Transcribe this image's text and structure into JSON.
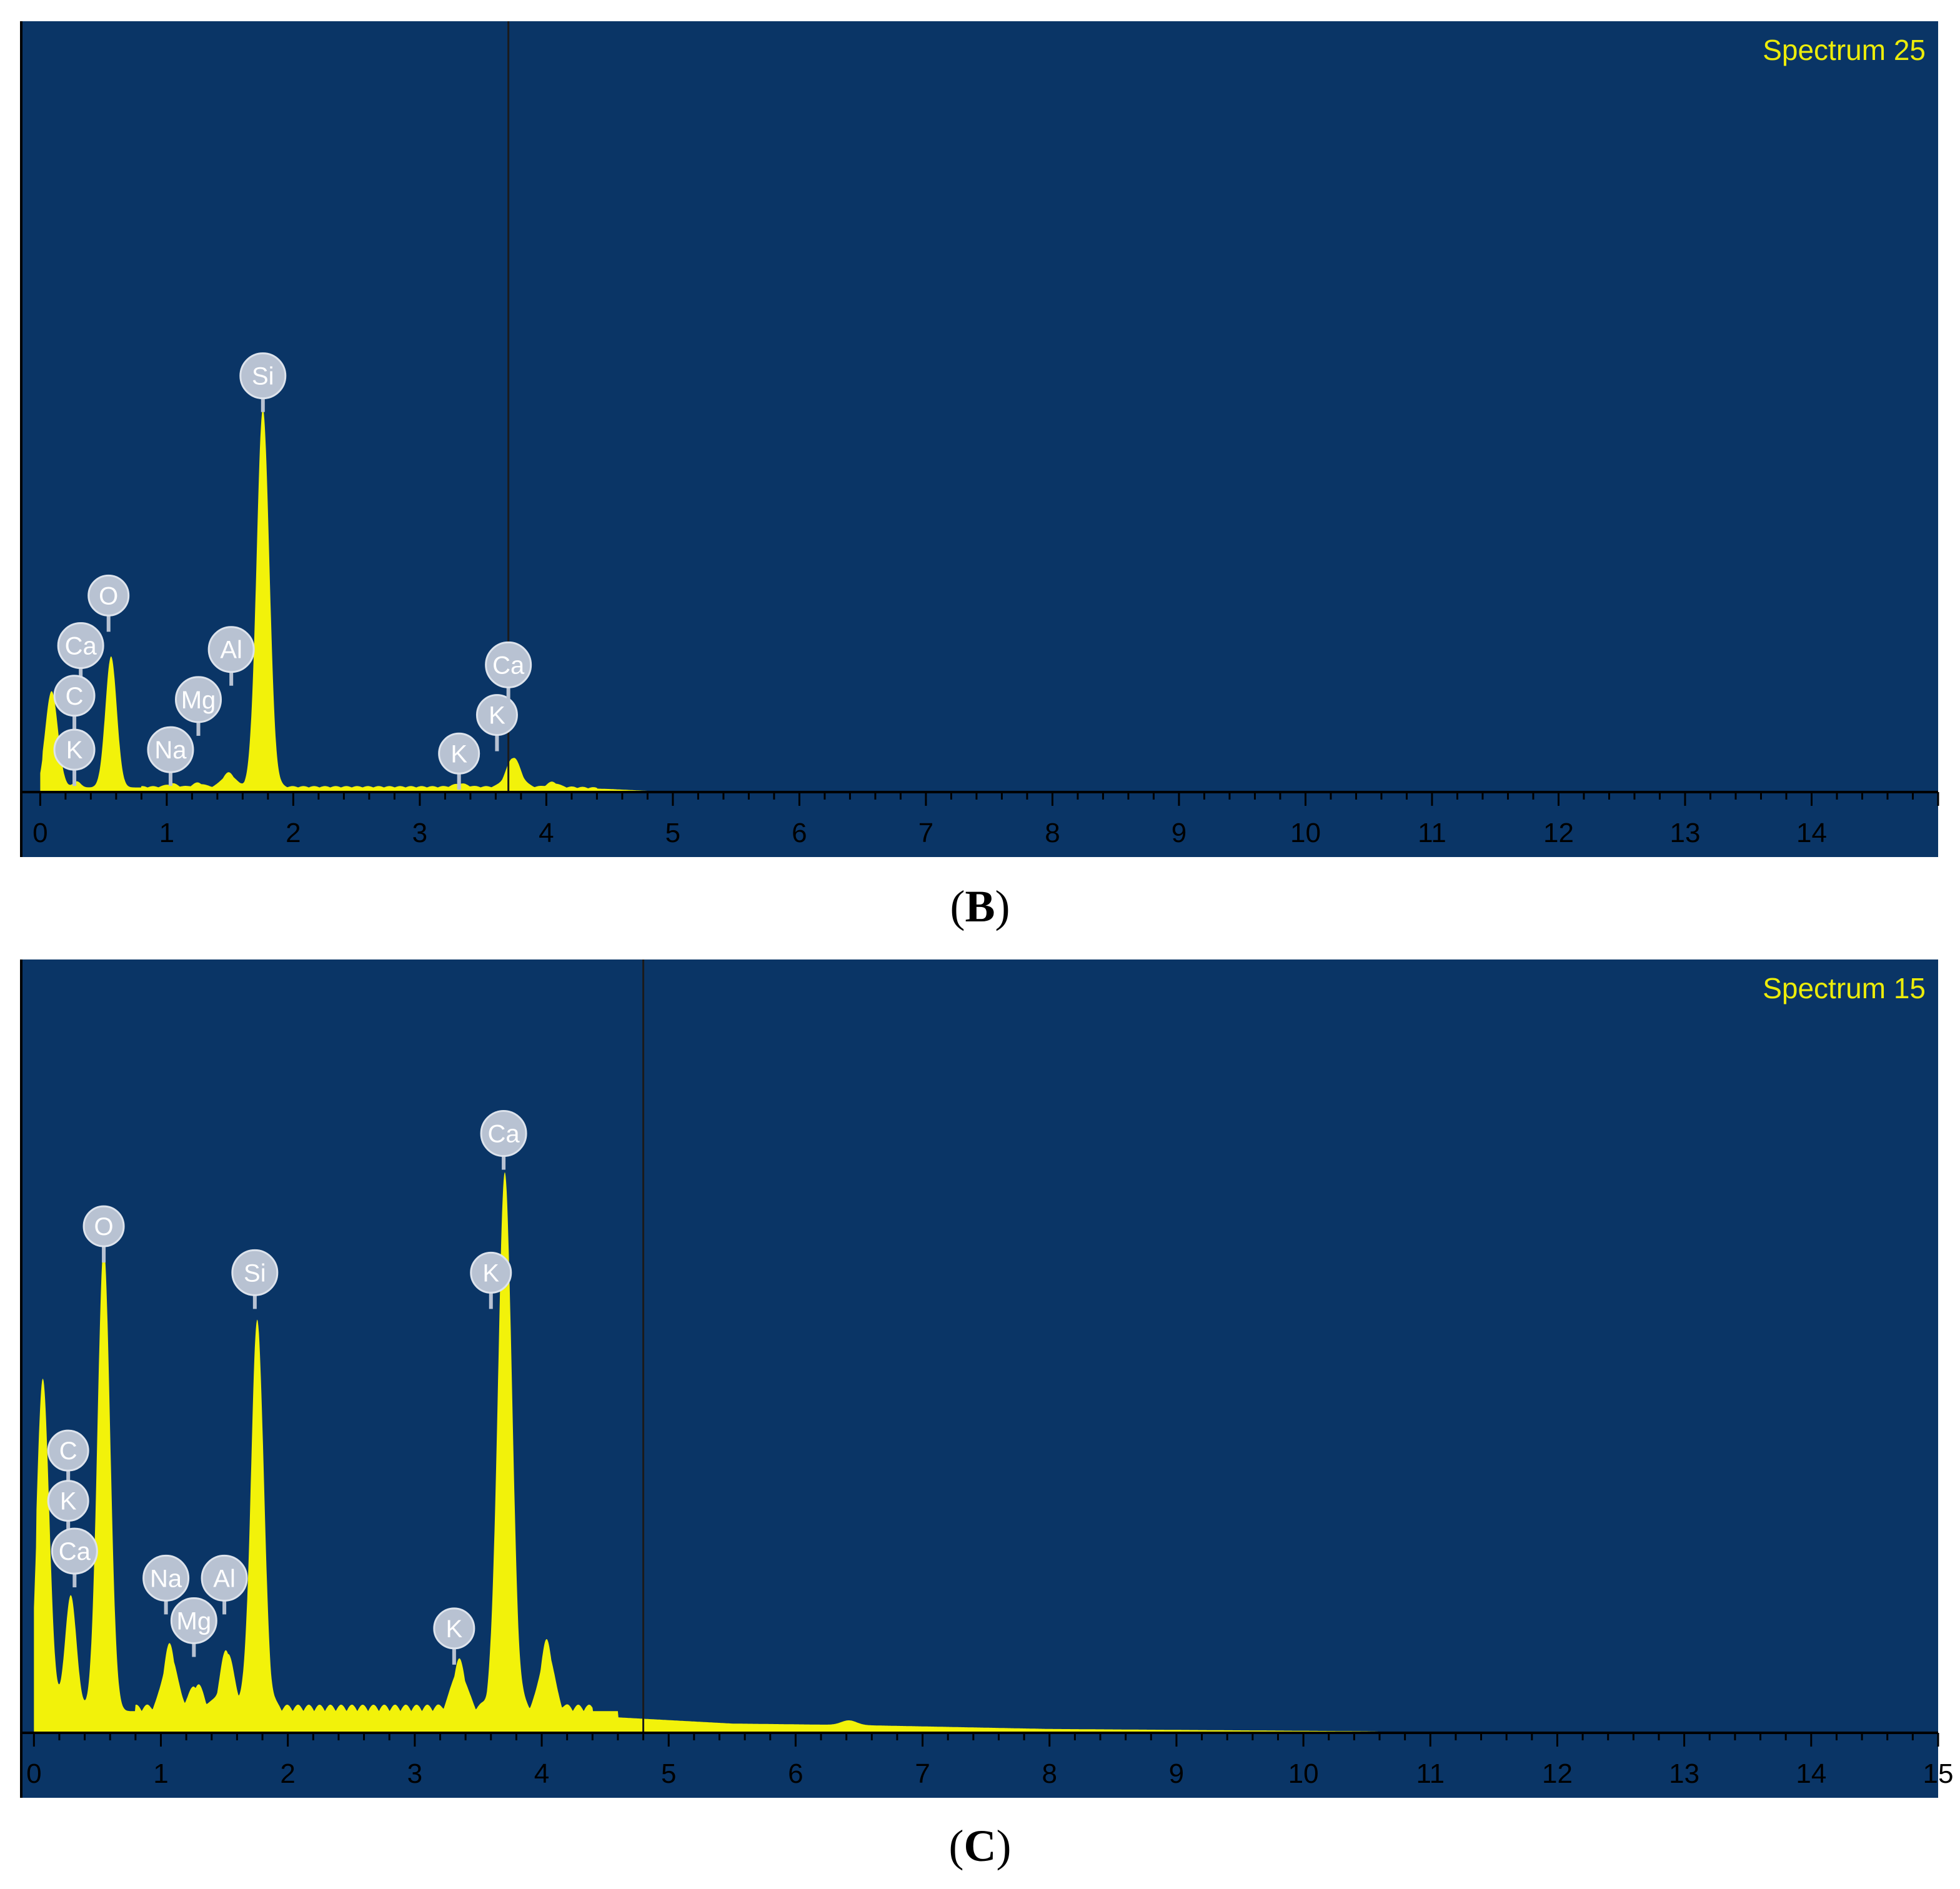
{
  "chart_data": [
    {
      "type": "area",
      "panel_caption": "B",
      "spectrum_label": "Spectrum 25",
      "xlim": [
        -0.15,
        15.0
      ],
      "ylim": [
        0,
        1.0
      ],
      "x_ticks": [
        0,
        1,
        2,
        3,
        4,
        5,
        6,
        7,
        8,
        9,
        10,
        11,
        12,
        13,
        14
      ],
      "cursor_x": 3.7,
      "baseline": 0.006,
      "tail": [
        [
          4.1,
          0.006
        ],
        [
          4.5,
          0.004
        ],
        [
          5.0,
          0.0
        ]
      ],
      "peaks": [
        {
          "center": 0.09,
          "height": 0.125,
          "width": 0.05
        },
        {
          "center": 0.29,
          "height": 0.008,
          "width": 0.03
        },
        {
          "center": 0.56,
          "height": 0.17,
          "width": 0.045
        },
        {
          "center": 1.04,
          "height": 0.004,
          "width": 0.04
        },
        {
          "center": 1.25,
          "height": 0.005,
          "width": 0.04
        },
        {
          "center": 1.49,
          "height": 0.018,
          "width": 0.05
        },
        {
          "center": 1.76,
          "height": 0.49,
          "width": 0.05
        },
        {
          "center": 3.32,
          "height": 0.004,
          "width": 0.05
        },
        {
          "center": 3.74,
          "height": 0.038,
          "width": 0.055
        },
        {
          "center": 4.05,
          "height": 0.006,
          "width": 0.04
        }
      ],
      "labels": [
        {
          "text": "O",
          "x": 0.54,
          "y": 0.255
        },
        {
          "text": "Ca",
          "x": 0.32,
          "y": 0.19
        },
        {
          "text": "C",
          "x": 0.27,
          "y": 0.125
        },
        {
          "text": "K",
          "x": 0.27,
          "y": 0.055
        },
        {
          "text": "Na",
          "x": 1.03,
          "y": 0.055
        },
        {
          "text": "Mg",
          "x": 1.25,
          "y": 0.12
        },
        {
          "text": "Al",
          "x": 1.51,
          "y": 0.185
        },
        {
          "text": "Si",
          "x": 1.76,
          "y": 0.54
        },
        {
          "text": "K",
          "x": 3.31,
          "y": 0.05
        },
        {
          "text": "K",
          "x": 3.61,
          "y": 0.1
        },
        {
          "text": "Ca",
          "x": 3.7,
          "y": 0.165
        }
      ]
    },
    {
      "type": "area",
      "panel_caption": "C",
      "spectrum_label": "Spectrum 15",
      "xlim": [
        -0.1,
        15.0
      ],
      "ylim": [
        0,
        1.0
      ],
      "x_ticks": [
        0,
        1,
        2,
        3,
        4,
        5,
        6,
        7,
        8,
        9,
        10,
        11,
        12,
        13,
        14,
        15
      ],
      "cursor_x": 4.8,
      "baseline": 0.028,
      "tail": [
        [
          4.6,
          0.02
        ],
        [
          5.5,
          0.012
        ],
        [
          6.5,
          0.01
        ],
        [
          8.0,
          0.005
        ],
        [
          10.5,
          0.002
        ],
        [
          11.0,
          0.0
        ]
      ],
      "peaks": [
        {
          "center": 0.07,
          "height": 0.43,
          "width": 0.05
        },
        {
          "center": 0.29,
          "height": 0.15,
          "width": 0.045
        },
        {
          "center": 0.55,
          "height": 0.6,
          "width": 0.05
        },
        {
          "center": 1.07,
          "height": 0.08,
          "width": 0.05
        },
        {
          "center": 1.28,
          "height": 0.03,
          "width": 0.05
        },
        {
          "center": 1.52,
          "height": 0.075,
          "width": 0.05
        },
        {
          "center": 1.76,
          "height": 0.5,
          "width": 0.05
        },
        {
          "center": 3.35,
          "height": 0.06,
          "width": 0.05
        },
        {
          "center": 3.71,
          "height": 0.69,
          "width": 0.055
        },
        {
          "center": 4.04,
          "height": 0.085,
          "width": 0.05
        },
        {
          "center": 6.42,
          "height": 0.006,
          "width": 0.06
        }
      ],
      "labels": [
        {
          "text": "O",
          "x": 0.55,
          "y": 0.655
        },
        {
          "text": "C",
          "x": 0.27,
          "y": 0.365
        },
        {
          "text": "K",
          "x": 0.27,
          "y": 0.3
        },
        {
          "text": "Ca",
          "x": 0.32,
          "y": 0.235
        },
        {
          "text": "Na",
          "x": 1.04,
          "y": 0.2
        },
        {
          "text": "Mg",
          "x": 1.26,
          "y": 0.145
        },
        {
          "text": "Al",
          "x": 1.5,
          "y": 0.2
        },
        {
          "text": "Si",
          "x": 1.74,
          "y": 0.595
        },
        {
          "text": "K",
          "x": 3.31,
          "y": 0.135
        },
        {
          "text": "K",
          "x": 3.6,
          "y": 0.595
        },
        {
          "text": "Ca",
          "x": 3.7,
          "y": 0.775
        }
      ]
    }
  ],
  "colors": {
    "background": "#0a3566",
    "spectrum_fill": "#f2f20a",
    "axis": "#000000",
    "cursor": "#1b1b1b",
    "marker_fill": "#b8c2d2",
    "marker_text": "#ffffff",
    "marker_stem": "#b8c2d2",
    "spectrum_label": "#ecec0a"
  }
}
